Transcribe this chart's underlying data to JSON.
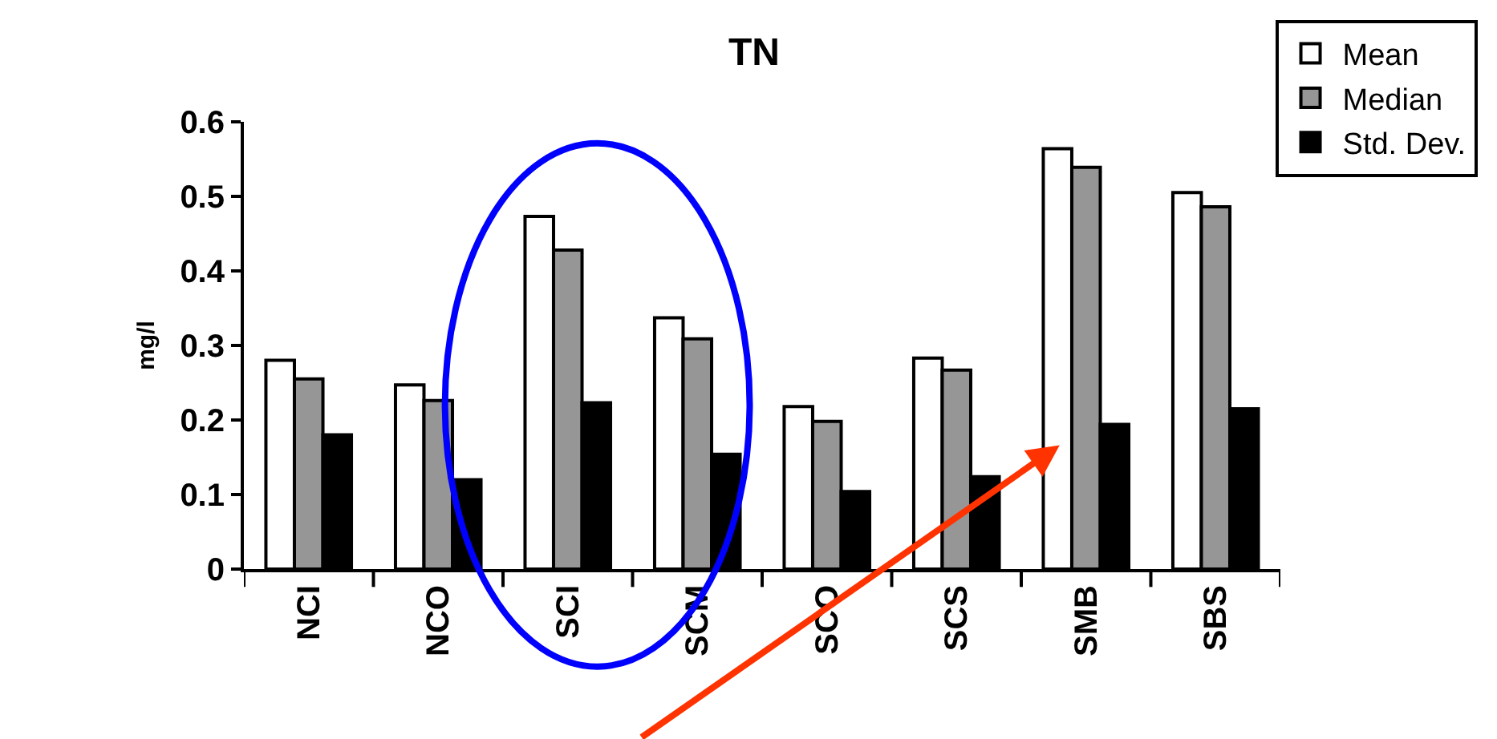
{
  "chart_data": {
    "type": "bar",
    "title": "TN",
    "ylabel": "mg/l",
    "categories": [
      "NCI",
      "NCO",
      "SCI",
      "SCM",
      "SCO",
      "SCS",
      "SMB",
      "SBS"
    ],
    "series": [
      {
        "name": "Mean",
        "color": "#ffffff",
        "values": [
          0.28,
          0.247,
          0.473,
          0.337,
          0.218,
          0.283,
          0.564,
          0.505
        ]
      },
      {
        "name": "Median",
        "color": "#969696",
        "values": [
          0.255,
          0.226,
          0.428,
          0.309,
          0.198,
          0.267,
          0.539,
          0.486
        ]
      },
      {
        "name": "Std. Dev.",
        "color": "#000000",
        "values": [
          0.18,
          0.12,
          0.223,
          0.154,
          0.104,
          0.124,
          0.194,
          0.215
        ]
      }
    ],
    "ylim": [
      0,
      0.6
    ],
    "yticks": [
      0,
      0.1,
      0.2,
      0.3,
      0.4,
      0.5,
      0.6
    ],
    "grid": false,
    "legend": "top right"
  }
}
